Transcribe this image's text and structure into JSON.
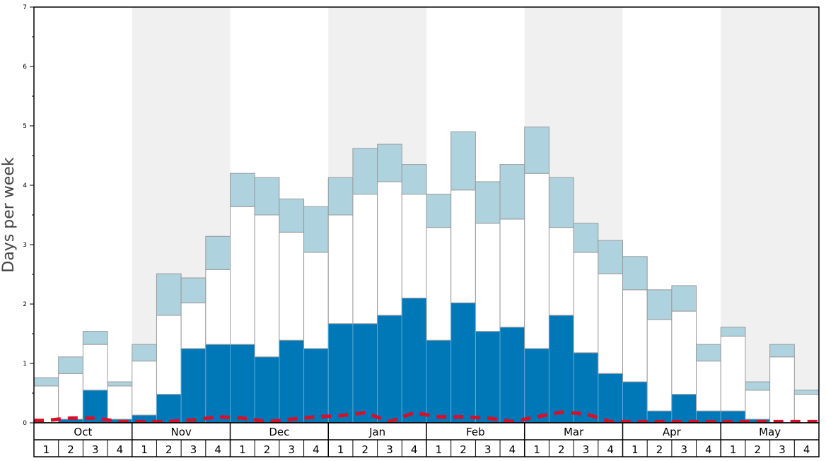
{
  "chart_data": {
    "type": "bar",
    "stacked": true,
    "title": "",
    "xlabel": "",
    "ylabel": "Days per week",
    "ylim": [
      0,
      7
    ],
    "yticks": [
      "0",
      "1",
      "2",
      "3",
      "4",
      "5",
      "6",
      "7"
    ],
    "months": [
      "Oct",
      "Nov",
      "Dec",
      "Jan",
      "Feb",
      "Mar",
      "Apr",
      "May"
    ],
    "weeks": [
      "1",
      "2",
      "3",
      "4"
    ],
    "series": [
      {
        "name": "dark",
        "color": "#0077b6",
        "values": [
          0,
          0.06,
          0.55,
          0.06,
          0.13,
          0.48,
          1.25,
          1.32,
          1.32,
          1.11,
          1.39,
          1.25,
          1.67,
          1.67,
          1.81,
          2.1,
          1.39,
          2.02,
          1.54,
          1.61,
          1.25,
          1.81,
          1.18,
          0.83,
          0.69,
          0.2,
          0.48,
          0.2,
          0.2,
          0.06,
          0,
          0
        ]
      },
      {
        "name": "white",
        "color": "#ffffff",
        "values": [
          0.62,
          0.77,
          0.77,
          0.56,
          0.91,
          1.33,
          0.77,
          1.26,
          2.32,
          2.39,
          1.82,
          1.62,
          1.83,
          2.18,
          2.25,
          1.75,
          1.9,
          1.9,
          1.82,
          1.82,
          2.95,
          1.48,
          1.69,
          1.68,
          1.55,
          1.54,
          1.4,
          0.84,
          1.26,
          0.49,
          1.11,
          0.48
        ]
      },
      {
        "name": "light",
        "color": "#aed3df",
        "values": [
          0.14,
          0.28,
          0.22,
          0.07,
          0.28,
          0.7,
          0.42,
          0.56,
          0.56,
          0.63,
          0.56,
          0.77,
          0.63,
          0.77,
          0.63,
          0.5,
          0.56,
          0.98,
          0.7,
          0.92,
          0.78,
          0.84,
          0.49,
          0.56,
          0.56,
          0.5,
          0.43,
          0.28,
          0.15,
          0.14,
          0.21,
          0.07
        ]
      }
    ],
    "line": {
      "name": "red-dashed",
      "color": "#d7102a",
      "values": [
        0.04,
        0.08,
        0.08,
        0.02,
        0.02,
        0.02,
        0.05,
        0.1,
        0.08,
        0.02,
        0.06,
        0.1,
        0.12,
        0.17,
        0.02,
        0.17,
        0.1,
        0.1,
        0.08,
        0.02,
        0.1,
        0.18,
        0.15,
        0.02,
        0.02,
        0.02,
        0.02,
        0.02,
        0.02,
        0.02,
        0.02,
        0.02
      ]
    },
    "shaded_months": [
      "Nov",
      "Jan",
      "Mar",
      "May"
    ]
  }
}
